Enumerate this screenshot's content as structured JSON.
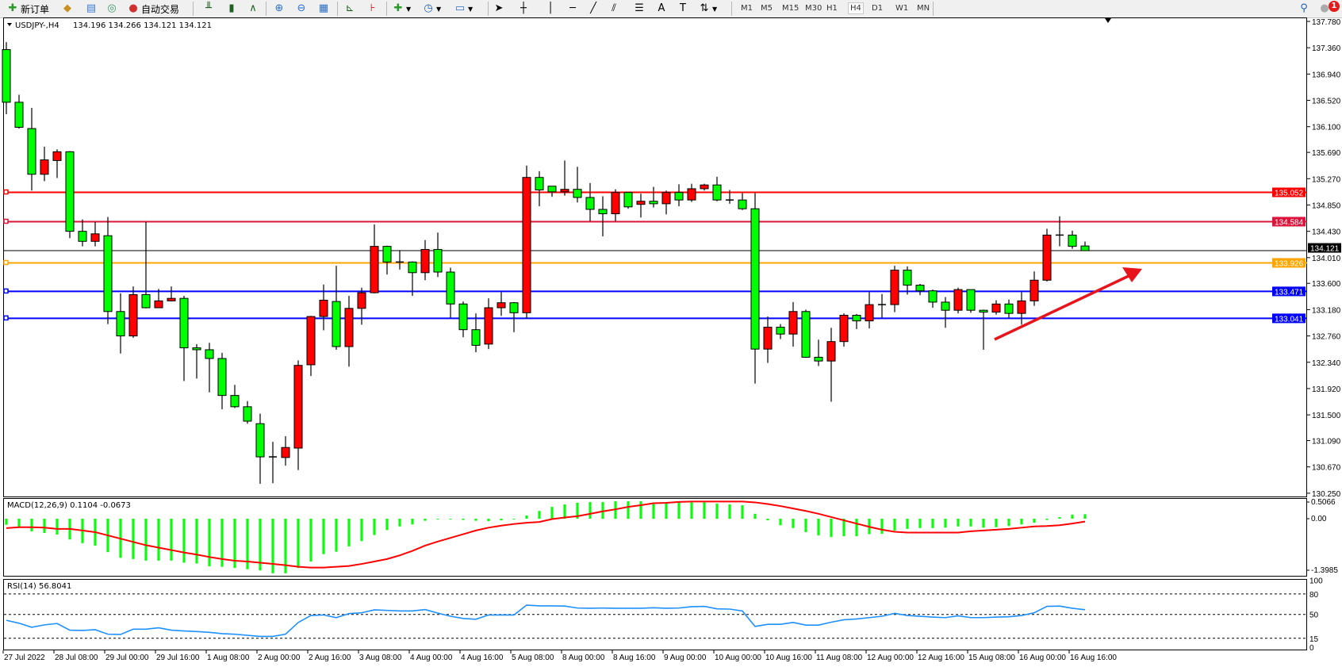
{
  "toolbar": {
    "new_order": "新订单",
    "auto_trading": "自动交易",
    "periods": [
      "M1",
      "M5",
      "M15",
      "M30",
      "H1",
      "H4",
      "D1",
      "W1",
      "MN"
    ],
    "active_period": "H4",
    "notification_count": "1",
    "icons": [
      "new-order-icon",
      "market-watch-icon",
      "data-window-icon",
      "navigator-icon",
      "auto-trading-icon",
      "bar-chart-icon",
      "candlestick-icon",
      "line-chart-icon",
      "zoom-in-icon",
      "zoom-out-icon",
      "tile-windows-icon",
      "chart-shift-icon",
      "autoscroll-icon",
      "new-chart-icon",
      "periods-icon",
      "templates-icon",
      "cursor-icon",
      "crosshair-icon",
      "vertical-line-icon",
      "horizontal-line-icon",
      "trendline-icon",
      "equidistant-channel-icon",
      "fibonacci-icon",
      "text-icon",
      "text-label-icon",
      "arrows-icon",
      "search-icon",
      "alert-icon"
    ]
  },
  "chart": {
    "symbol_header": "USDJPY-,H4",
    "ohlc_header": "134.196 134.266 134.121 134.121",
    "colors": {
      "bull": "#ff0000",
      "bear": "#00ff00",
      "background": "#ffffff"
    },
    "price_ticks": [
      "137.780",
      "137.360",
      "136.940",
      "136.520",
      "136.100",
      "135.690",
      "135.270",
      "134.850",
      "134.430",
      "134.010",
      "133.600",
      "133.180",
      "132.760",
      "132.340",
      "131.920",
      "131.500",
      "131.090",
      "130.670",
      "130.250"
    ],
    "horizontal_lines": [
      {
        "price": 135.052,
        "label": "135.052",
        "color": "#ff0000"
      },
      {
        "price": 134.584,
        "label": "134.584",
        "color": "#dc143c"
      },
      {
        "price": 133.926,
        "label": "133.926",
        "color": "#ffa500"
      },
      {
        "price": 133.471,
        "label": "133.471",
        "color": "#0000ff"
      },
      {
        "price": 133.041,
        "label": "133.041",
        "color": "#0000ff"
      }
    ],
    "current_price": {
      "price": 134.121,
      "label": "134.121",
      "color": "#000000"
    },
    "arrow_annotation": {
      "color": "#e8141c",
      "direction": "up-right"
    },
    "time_labels": [
      "27 Jul 2022",
      "28 Jul 08:00",
      "29 Jul 00:00",
      "29 Jul 16:00",
      "1 Aug 08:00",
      "2 Aug 00:00",
      "2 Aug 16:00",
      "3 Aug 08:00",
      "4 Aug 00:00",
      "4 Aug 16:00",
      "5 Aug 08:00",
      "8 Aug 00:00",
      "8 Aug 16:00",
      "9 Aug 00:00",
      "10 Aug 00:00",
      "10 Aug 16:00",
      "11 Aug 08:00",
      "12 Aug 00:00",
      "12 Aug 16:00",
      "15 Aug 08:00",
      "16 Aug 00:00",
      "16 Aug 16:00"
    ],
    "candles_ohlc": [
      [
        137.33,
        137.45,
        136.3,
        136.49
      ],
      [
        136.49,
        136.61,
        136.07,
        136.09
      ],
      [
        136.07,
        136.4,
        135.08,
        135.34
      ],
      [
        135.34,
        135.78,
        135.23,
        135.57
      ],
      [
        135.56,
        135.74,
        135.28,
        135.7
      ],
      [
        135.7,
        135.71,
        134.32,
        134.43
      ],
      [
        134.43,
        134.62,
        134.19,
        134.27
      ],
      [
        134.27,
        134.58,
        134.19,
        134.39
      ],
      [
        134.36,
        134.66,
        132.95,
        133.15
      ],
      [
        133.15,
        133.44,
        132.48,
        132.76
      ],
      [
        132.76,
        133.55,
        132.73,
        133.42
      ],
      [
        133.42,
        134.58,
        133.2,
        133.21
      ],
      [
        133.21,
        133.51,
        133.21,
        133.32
      ],
      [
        133.32,
        133.55,
        133.31,
        133.36
      ],
      [
        133.36,
        133.4,
        132.04,
        132.57
      ],
      [
        132.57,
        132.63,
        132.08,
        132.54
      ],
      [
        132.54,
        132.65,
        131.86,
        132.4
      ],
      [
        132.4,
        132.49,
        131.59,
        131.81
      ],
      [
        131.81,
        131.98,
        131.61,
        131.63
      ],
      [
        131.63,
        131.72,
        131.36,
        131.4
      ],
      [
        131.36,
        131.52,
        130.4,
        130.83
      ],
      [
        130.83,
        131.07,
        130.41,
        130.82
      ],
      [
        130.82,
        131.16,
        130.69,
        130.98
      ],
      [
        130.97,
        132.37,
        130.62,
        132.29
      ],
      [
        132.3,
        133.08,
        132.12,
        133.07
      ],
      [
        133.07,
        133.58,
        132.85,
        133.33
      ],
      [
        133.31,
        133.88,
        132.54,
        132.59
      ],
      [
        132.59,
        133.4,
        132.27,
        133.2
      ],
      [
        133.2,
        133.53,
        132.94,
        133.45
      ],
      [
        133.45,
        134.54,
        133.44,
        134.19
      ],
      [
        134.19,
        134.2,
        133.74,
        133.94
      ],
      [
        133.94,
        134.13,
        133.82,
        133.94
      ],
      [
        133.94,
        133.95,
        133.4,
        133.77
      ],
      [
        133.77,
        134.29,
        133.65,
        134.14
      ],
      [
        134.14,
        134.41,
        133.7,
        133.78
      ],
      [
        133.78,
        133.85,
        133.05,
        133.27
      ],
      [
        133.27,
        133.31,
        132.74,
        132.86
      ],
      [
        132.86,
        133.12,
        132.5,
        132.61
      ],
      [
        132.63,
        133.36,
        132.55,
        133.21
      ],
      [
        133.21,
        133.46,
        133.08,
        133.29
      ],
      [
        133.29,
        133.3,
        132.82,
        133.13
      ],
      [
        133.13,
        135.48,
        133.04,
        135.29
      ],
      [
        135.29,
        135.39,
        134.83,
        135.09
      ],
      [
        135.15,
        135.15,
        134.98,
        135.06
      ],
      [
        135.06,
        135.56,
        135.0,
        135.1
      ],
      [
        135.1,
        135.46,
        134.89,
        134.97
      ],
      [
        134.97,
        135.2,
        134.59,
        134.78
      ],
      [
        134.78,
        134.99,
        134.35,
        134.71
      ],
      [
        134.71,
        135.1,
        134.59,
        135.05
      ],
      [
        135.05,
        135.05,
        134.79,
        134.82
      ],
      [
        134.86,
        135.03,
        134.65,
        134.91
      ],
      [
        134.91,
        135.14,
        134.81,
        134.87
      ],
      [
        134.87,
        135.08,
        134.7,
        135.05
      ],
      [
        135.05,
        135.18,
        134.83,
        134.93
      ],
      [
        134.93,
        135.19,
        134.9,
        135.11
      ],
      [
        135.11,
        135.19,
        135.08,
        135.17
      ],
      [
        135.17,
        135.3,
        134.91,
        134.93
      ],
      [
        134.93,
        135.09,
        134.87,
        134.93
      ],
      [
        134.93,
        135.04,
        134.77,
        134.79
      ],
      [
        134.79,
        135.04,
        132.0,
        132.55
      ],
      [
        132.55,
        133.07,
        132.33,
        132.9
      ],
      [
        132.9,
        132.95,
        132.71,
        132.79
      ],
      [
        132.79,
        133.3,
        132.59,
        133.15
      ],
      [
        133.15,
        133.18,
        132.41,
        132.42
      ],
      [
        132.42,
        132.7,
        132.28,
        132.36
      ],
      [
        132.36,
        132.89,
        131.71,
        132.67
      ],
      [
        132.67,
        133.12,
        132.59,
        133.09
      ],
      [
        133.09,
        133.11,
        132.87,
        133.0
      ],
      [
        133.0,
        133.46,
        132.88,
        133.26
      ],
      [
        133.26,
        133.43,
        133.05,
        133.26
      ],
      [
        133.26,
        133.88,
        133.14,
        133.81
      ],
      [
        133.81,
        133.87,
        133.42,
        133.57
      ],
      [
        133.57,
        133.59,
        133.41,
        133.48
      ],
      [
        133.48,
        133.5,
        133.21,
        133.3
      ],
      [
        133.3,
        133.38,
        132.89,
        133.17
      ],
      [
        133.17,
        133.53,
        133.12,
        133.5
      ],
      [
        133.5,
        133.5,
        133.13,
        133.17
      ],
      [
        133.17,
        133.18,
        132.54,
        133.14
      ],
      [
        133.14,
        133.33,
        133.1,
        133.27
      ],
      [
        133.27,
        133.34,
        133.05,
        133.12
      ],
      [
        133.12,
        133.46,
        132.94,
        133.32
      ],
      [
        133.32,
        133.79,
        133.24,
        133.65
      ],
      [
        133.65,
        134.47,
        133.63,
        134.37
      ],
      [
        134.37,
        134.67,
        134.19,
        134.37
      ],
      [
        134.37,
        134.44,
        134.15,
        134.19
      ],
      [
        134.196,
        134.266,
        134.121,
        134.121
      ]
    ]
  },
  "macd": {
    "title": "MACD(12,26,9) 0.1104 -0.0673",
    "axis_labels": [
      "0.5066",
      "0.00",
      "-1.3985"
    ],
    "range": [
      -1.3985,
      0.5066
    ],
    "histogram_color": "#00ff00",
    "signal_color": "#ff0000",
    "histogram": [
      -0.15,
      -0.21,
      -0.31,
      -0.35,
      -0.39,
      -0.51,
      -0.6,
      -0.66,
      -0.82,
      -0.96,
      -0.99,
      -1.03,
      -1.03,
      -1.03,
      -1.08,
      -1.1,
      -1.17,
      -1.18,
      -1.21,
      -1.24,
      -1.27,
      -1.34,
      -1.34,
      -1.21,
      -1.05,
      -0.87,
      -0.81,
      -0.68,
      -0.55,
      -0.4,
      -0.28,
      -0.19,
      -0.14,
      -0.05,
      -0.02,
      -0.02,
      -0.03,
      -0.05,
      -0.06,
      -0.04,
      -0.02,
      0.08,
      0.19,
      0.29,
      0.35,
      0.39,
      0.41,
      0.41,
      0.43,
      0.43,
      0.43,
      0.4,
      0.4,
      0.4,
      0.4,
      0.4,
      0.37,
      0.35,
      0.33,
      0.12,
      -0.04,
      -0.16,
      -0.23,
      -0.33,
      -0.41,
      -0.45,
      -0.43,
      -0.43,
      -0.38,
      -0.37,
      -0.29,
      -0.25,
      -0.23,
      -0.23,
      -0.22,
      -0.19,
      -0.19,
      -0.22,
      -0.21,
      -0.18,
      -0.14,
      -0.1,
      -0.03,
      0.04,
      0.1,
      0.11
    ],
    "signal": [
      -0.23,
      -0.21,
      -0.21,
      -0.22,
      -0.25,
      -0.25,
      -0.29,
      -0.33,
      -0.41,
      -0.49,
      -0.57,
      -0.65,
      -0.71,
      -0.77,
      -0.83,
      -0.88,
      -0.94,
      -0.99,
      -1.03,
      -1.05,
      -1.08,
      -1.11,
      -1.14,
      -1.18,
      -1.2,
      -1.2,
      -1.18,
      -1.16,
      -1.11,
      -1.05,
      -0.99,
      -0.9,
      -0.79,
      -0.66,
      -0.56,
      -0.47,
      -0.38,
      -0.29,
      -0.22,
      -0.17,
      -0.13,
      -0.1,
      -0.08,
      -0.01,
      0.03,
      0.06,
      0.12,
      0.18,
      0.23,
      0.29,
      0.33,
      0.38,
      0.39,
      0.41,
      0.42,
      0.42,
      0.42,
      0.42,
      0.42,
      0.4,
      0.36,
      0.31,
      0.25,
      0.19,
      0.12,
      0.04,
      -0.04,
      -0.12,
      -0.2,
      -0.27,
      -0.32,
      -0.34,
      -0.34,
      -0.34,
      -0.34,
      -0.34,
      -0.31,
      -0.29,
      -0.27,
      -0.25,
      -0.22,
      -0.19,
      -0.18,
      -0.16,
      -0.12,
      -0.07
    ]
  },
  "rsi": {
    "title": "RSI(14) 56.8041",
    "axis_labels": [
      "100",
      "80",
      "50",
      "15",
      "0"
    ],
    "levels": [
      80,
      50,
      15
    ],
    "line_color": "#1e90ff",
    "values": [
      41.4,
      37.1,
      31.2,
      34.7,
      36.7,
      26.9,
      26.5,
      27.6,
      21.0,
      20.6,
      28.4,
      28.4,
      30.4,
      26.9,
      25.7,
      24.9,
      23.7,
      21.8,
      21.0,
      19.4,
      17.8,
      17.8,
      21.0,
      38.2,
      48.4,
      49.2,
      45.3,
      51.2,
      52.4,
      56.7,
      55.9,
      55.1,
      55.1,
      57.1,
      52.0,
      47.3,
      44.1,
      42.9,
      49.2,
      49.2,
      49.2,
      63.7,
      62.5,
      62.5,
      62.2,
      59.4,
      59.0,
      59.4,
      59.0,
      59.0,
      59.0,
      59.8,
      59.0,
      59.4,
      61.4,
      61.8,
      58.2,
      57.8,
      55.1,
      32.4,
      35.5,
      35.5,
      38.2,
      34.3,
      34.3,
      38.6,
      42.2,
      43.3,
      45.3,
      47.3,
      51.6,
      48.4,
      47.3,
      46.1,
      45.3,
      48.0,
      45.3,
      45.3,
      46.1,
      46.5,
      48.4,
      52.4,
      61.8,
      62.2,
      59.0,
      56.8
    ]
  }
}
